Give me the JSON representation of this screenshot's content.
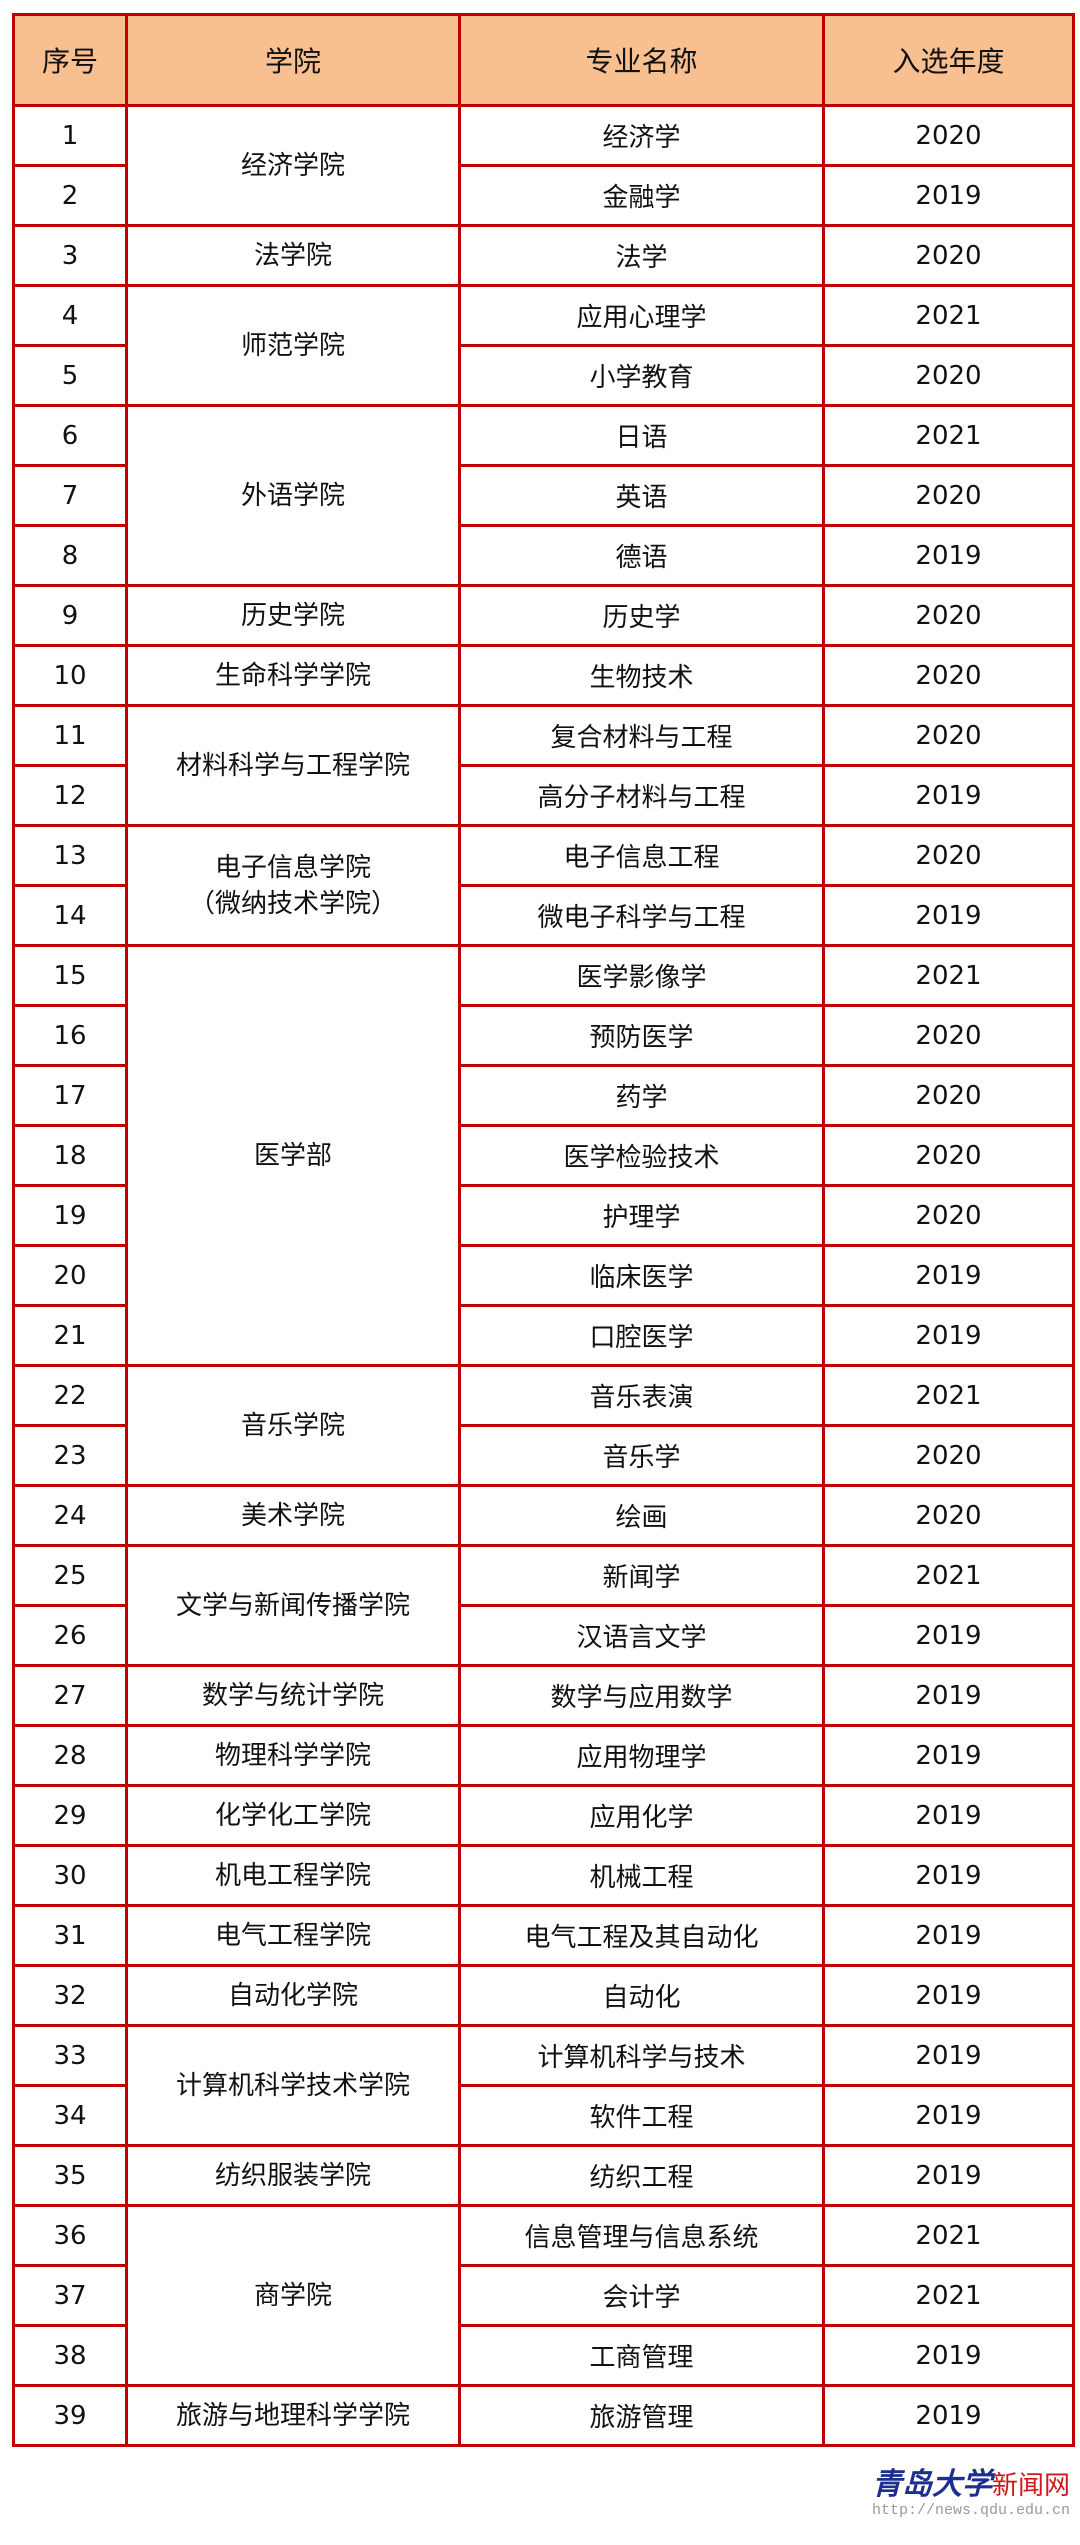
{
  "header": {
    "seq": "序号",
    "college": "学院",
    "major": "专业名称",
    "year": "入选年度"
  },
  "colors": {
    "border": "#c00000",
    "header_bg": "#f8bf90"
  },
  "colleges": [
    {
      "name": "经济学院",
      "majors": [
        {
          "seq": "1",
          "name": "经济学",
          "year": "2020"
        },
        {
          "seq": "2",
          "name": "金融学",
          "year": "2019"
        }
      ]
    },
    {
      "name": "法学院",
      "majors": [
        {
          "seq": "3",
          "name": "法学",
          "year": "2020"
        }
      ]
    },
    {
      "name": "师范学院",
      "majors": [
        {
          "seq": "4",
          "name": "应用心理学",
          "year": "2021"
        },
        {
          "seq": "5",
          "name": "小学教育",
          "year": "2020"
        }
      ]
    },
    {
      "name": "外语学院",
      "majors": [
        {
          "seq": "6",
          "name": "日语",
          "year": "2021"
        },
        {
          "seq": "7",
          "name": "英语",
          "year": "2020"
        },
        {
          "seq": "8",
          "name": "德语",
          "year": "2019"
        }
      ]
    },
    {
      "name": "历史学院",
      "majors": [
        {
          "seq": "9",
          "name": "历史学",
          "year": "2020"
        }
      ]
    },
    {
      "name": "生命科学学院",
      "majors": [
        {
          "seq": "10",
          "name": "生物技术",
          "year": "2020"
        }
      ]
    },
    {
      "name": "材料科学与工程学院",
      "majors": [
        {
          "seq": "11",
          "name": "复合材料与工程",
          "year": "2020"
        },
        {
          "seq": "12",
          "name": "高分子材料与工程",
          "year": "2019"
        }
      ]
    },
    {
      "name": "电子信息学院",
      "name2": "（微纳技术学院）",
      "majors": [
        {
          "seq": "13",
          "name": "电子信息工程",
          "year": "2020"
        },
        {
          "seq": "14",
          "name": "微电子科学与工程",
          "year": "2019"
        }
      ]
    },
    {
      "name": "医学部",
      "majors": [
        {
          "seq": "15",
          "name": "医学影像学",
          "year": "2021"
        },
        {
          "seq": "16",
          "name": "预防医学",
          "year": "2020"
        },
        {
          "seq": "17",
          "name": "药学",
          "year": "2020"
        },
        {
          "seq": "18",
          "name": "医学检验技术",
          "year": "2020"
        },
        {
          "seq": "19",
          "name": "护理学",
          "year": "2020"
        },
        {
          "seq": "20",
          "name": "临床医学",
          "year": "2019"
        },
        {
          "seq": "21",
          "name": "口腔医学",
          "year": "2019"
        }
      ]
    },
    {
      "name": "音乐学院",
      "majors": [
        {
          "seq": "22",
          "name": "音乐表演",
          "year": "2021"
        },
        {
          "seq": "23",
          "name": "音乐学",
          "year": "2020"
        }
      ]
    },
    {
      "name": "美术学院",
      "majors": [
        {
          "seq": "24",
          "name": "绘画",
          "year": "2020"
        }
      ]
    },
    {
      "name": "文学与新闻传播学院",
      "majors": [
        {
          "seq": "25",
          "name": "新闻学",
          "year": "2021"
        },
        {
          "seq": "26",
          "name": "汉语言文学",
          "year": "2019"
        }
      ]
    },
    {
      "name": "数学与统计学院",
      "majors": [
        {
          "seq": "27",
          "name": "数学与应用数学",
          "year": "2019"
        }
      ]
    },
    {
      "name": "物理科学学院",
      "majors": [
        {
          "seq": "28",
          "name": "应用物理学",
          "year": "2019"
        }
      ]
    },
    {
      "name": "化学化工学院",
      "majors": [
        {
          "seq": "29",
          "name": "应用化学",
          "year": "2019"
        }
      ]
    },
    {
      "name": "机电工程学院",
      "majors": [
        {
          "seq": "30",
          "name": "机械工程",
          "year": "2019"
        }
      ]
    },
    {
      "name": "电气工程学院",
      "majors": [
        {
          "seq": "31",
          "name": "电气工程及其自动化",
          "year": "2019"
        }
      ]
    },
    {
      "name": "自动化学院",
      "majors": [
        {
          "seq": "32",
          "name": "自动化",
          "year": "2019"
        }
      ]
    },
    {
      "name": "计算机科学技术学院",
      "majors": [
        {
          "seq": "33",
          "name": "计算机科学与技术",
          "year": "2019"
        },
        {
          "seq": "34",
          "name": "软件工程",
          "year": "2019"
        }
      ]
    },
    {
      "name": "纺织服装学院",
      "majors": [
        {
          "seq": "35",
          "name": "纺织工程",
          "year": "2019"
        }
      ]
    },
    {
      "name": "商学院",
      "majors": [
        {
          "seq": "36",
          "name": "信息管理与信息系统",
          "year": "2021"
        },
        {
          "seq": "37",
          "name": "会计学",
          "year": "2021"
        },
        {
          "seq": "38",
          "name": "工商管理",
          "year": "2019"
        }
      ]
    },
    {
      "name": "旅游与地理科学学院",
      "majors": [
        {
          "seq": "39",
          "name": "旅游管理",
          "year": "2019"
        }
      ]
    }
  ],
  "watermark": {
    "logo": "青岛大学",
    "site": "新闻网",
    "url": "http://news.qdu.edu.cn"
  }
}
